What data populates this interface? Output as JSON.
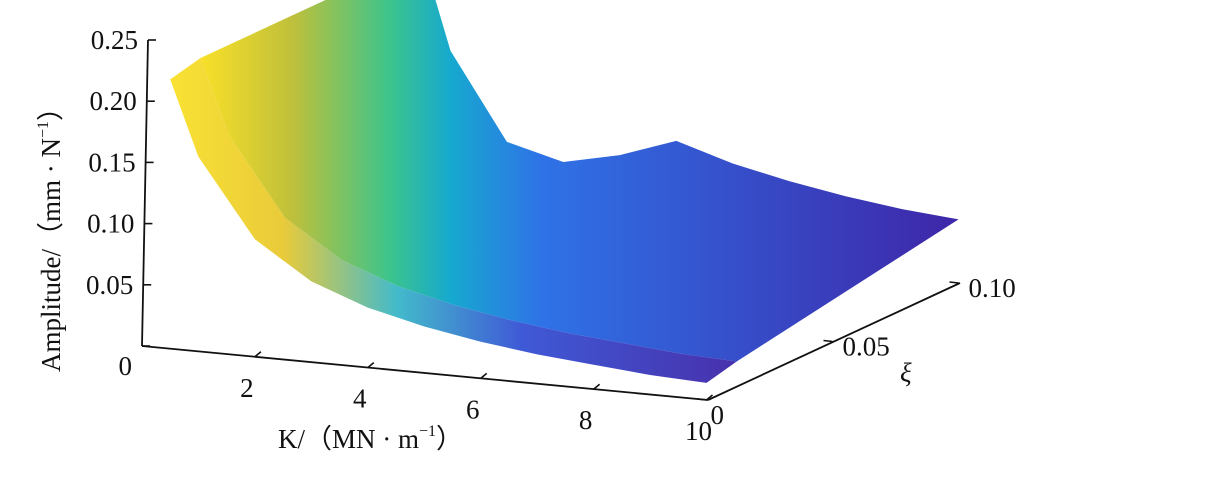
{
  "chart_data": {
    "type": "surface",
    "title": "",
    "xlabel": {
      "prefix": "K/（MN · m",
      "sup": "−1",
      "suffix": "）"
    },
    "ylabel": {
      "prefix": "Amplitude/（mm · N",
      "sup": "−1",
      "suffix": "）"
    },
    "zlabel": "ξ",
    "x_ticks": [
      "2",
      "4",
      "6",
      "8",
      "10"
    ],
    "y_ticks": [
      "0",
      "0.05",
      "0.10",
      "0.15",
      "0.20",
      "0.25"
    ],
    "z_ticks": [
      "0",
      "0.05",
      "0.10"
    ],
    "x_range": [
      0,
      10
    ],
    "amplitude_range": [
      0,
      0.25
    ],
    "xi_range": [
      0,
      0.1
    ],
    "colormap": [
      "#3e26a8",
      "#2f72e7",
      "#16a9cf",
      "#3cc48c",
      "#c0c03a",
      "#f9e029"
    ],
    "surface_samples": {
      "K": [
        0.5,
        1,
        2,
        3,
        4,
        5,
        6,
        7,
        8,
        9,
        10
      ],
      "xi_low": [
        0.226,
        0.165,
        0.102,
        0.072,
        0.055,
        0.044,
        0.036,
        0.03,
        0.026,
        0.022,
        0.02
      ],
      "xi_high": [
        0.226,
        0.15,
        0.08,
        0.068,
        0.078,
        0.094,
        0.08,
        0.07,
        0.062,
        0.056,
        0.052
      ]
    },
    "grid": false,
    "legend": "none"
  }
}
